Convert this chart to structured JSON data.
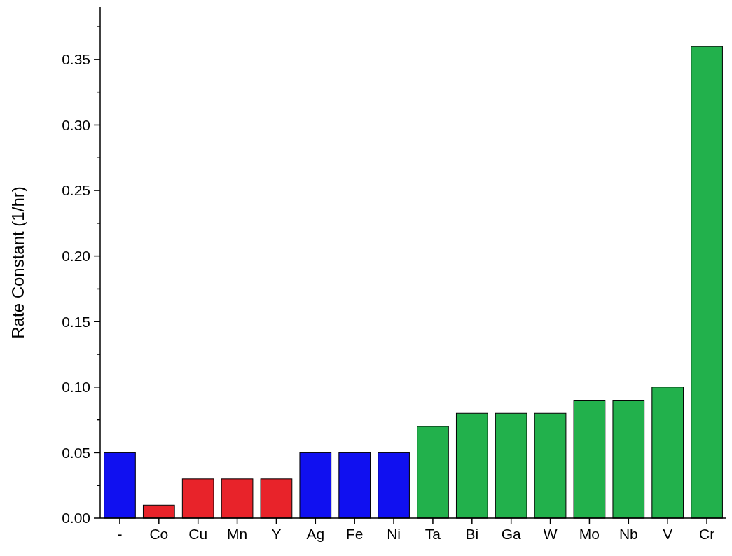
{
  "chart_data": {
    "type": "bar",
    "ylabel": "Rate Constant (1/hr)",
    "categories": [
      "-",
      "Co",
      "Cu",
      "Mn",
      "Y",
      "Ag",
      "Fe",
      "Ni",
      "Ta",
      "Bi",
      "Ga",
      "W",
      "Mo",
      "Nb",
      "V",
      "Cr"
    ],
    "values": [
      0.05,
      0.01,
      0.03,
      0.03,
      0.03,
      0.05,
      0.05,
      0.05,
      0.07,
      0.08,
      0.08,
      0.08,
      0.09,
      0.09,
      0.1,
      0.36
    ],
    "colors": [
      "#1010f0",
      "#e8232a",
      "#e8232a",
      "#e8232a",
      "#e8232a",
      "#1010f0",
      "#1010f0",
      "#1010f0",
      "#22b14c",
      "#22b14c",
      "#22b14c",
      "#22b14c",
      "#22b14c",
      "#22b14c",
      "#22b14c",
      "#22b14c"
    ],
    "ylim": [
      0,
      0.39
    ],
    "yticks": [
      {
        "value": 0,
        "label": "0.00"
      },
      {
        "value": 0.025,
        "label": null
      },
      {
        "value": 0.05,
        "label": "0.05"
      },
      {
        "value": 0.075,
        "label": null
      },
      {
        "value": 0.1,
        "label": "0.10"
      },
      {
        "value": 0.125,
        "label": null
      },
      {
        "value": 0.15,
        "label": "0.15"
      },
      {
        "value": 0.175,
        "label": null
      },
      {
        "value": 0.2,
        "label": "0.20"
      },
      {
        "value": 0.225,
        "label": null
      },
      {
        "value": 0.25,
        "label": "0.25"
      },
      {
        "value": 0.275,
        "label": null
      },
      {
        "value": 0.3,
        "label": "0.30"
      },
      {
        "value": 0.325,
        "label": null
      },
      {
        "value": 0.35,
        "label": "0.35"
      },
      {
        "value": 0.375,
        "label": null
      }
    ],
    "grid": false
  }
}
